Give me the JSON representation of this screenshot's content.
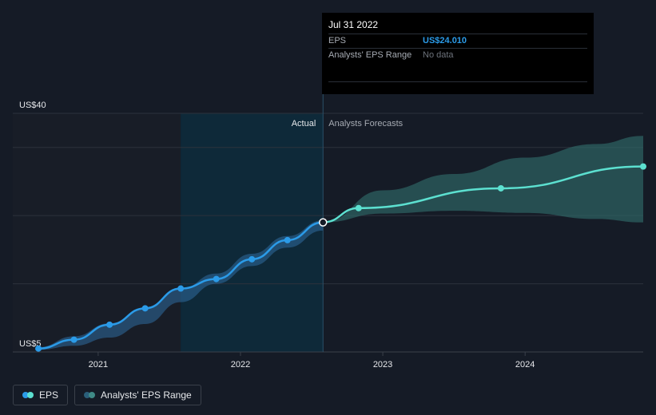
{
  "chart_data": {
    "type": "line",
    "y_axis": {
      "labels": [
        "US$40",
        "US$5"
      ],
      "min": 5,
      "max": 40,
      "gridlines": [
        5,
        15,
        25,
        35,
        40
      ]
    },
    "x_axis": {
      "tick_labels": [
        "2021",
        "2022",
        "2023",
        "2024"
      ]
    },
    "regions": {
      "actual_label": "Actual",
      "forecast_label": "Analysts Forecasts"
    },
    "series": [
      {
        "name": "EPS",
        "color": "#2b9be8",
        "points": [
          {
            "x": 2020.58,
            "y": 5.5
          },
          {
            "x": 2020.83,
            "y": 6.8
          },
          {
            "x": 2021.08,
            "y": 9.0
          },
          {
            "x": 2021.33,
            "y": 11.4
          },
          {
            "x": 2021.58,
            "y": 14.3
          },
          {
            "x": 2021.83,
            "y": 15.7
          },
          {
            "x": 2022.08,
            "y": 18.6
          },
          {
            "x": 2022.33,
            "y": 21.4
          },
          {
            "x": 2022.58,
            "y": 24.01
          }
        ]
      },
      {
        "name": "EPS forecast",
        "color": "#5ce0d0",
        "points": [
          {
            "x": 2022.58,
            "y": 24.01
          },
          {
            "x": 2022.83,
            "y": 26.1
          },
          {
            "x": 2023.83,
            "y": 29.0
          },
          {
            "x": 2024.83,
            "y": 32.2
          }
        ]
      }
    ],
    "forecast_range": {
      "x": [
        2022.58,
        2023.0,
        2023.5,
        2024.0,
        2024.5,
        2024.83
      ],
      "low": [
        24.01,
        25.3,
        25.7,
        25.4,
        24.5,
        24.0
      ],
      "high": [
        24.01,
        28.7,
        31.1,
        33.5,
        35.5,
        36.7
      ]
    },
    "actual_range": {
      "x": [
        2020.58,
        2020.83,
        2021.08,
        2021.33,
        2021.58,
        2021.83,
        2022.08,
        2022.33,
        2022.58
      ],
      "low": [
        5.3,
        5.9,
        7.1,
        9.1,
        12.3,
        15.0,
        17.6,
        20.3,
        22.8
      ],
      "high": [
        5.7,
        7.3,
        9.2,
        11.5,
        14.3,
        16.5,
        19.4,
        22.0,
        24.3
      ]
    },
    "highlight_band": [
      2021.58,
      2022.58
    ]
  },
  "tooltip": {
    "date": "Jul 31 2022",
    "eps_label": "EPS",
    "eps_value": "US$24.010",
    "range_label": "Analysts' EPS Range",
    "range_value": "No data"
  },
  "legend": {
    "eps_label": "EPS",
    "range_label": "Analysts' EPS Range",
    "eps_colors": [
      "#5ce0d0",
      "#2b9be8"
    ],
    "range_colors": [
      "#3f8a86",
      "#2a5f7a"
    ]
  }
}
